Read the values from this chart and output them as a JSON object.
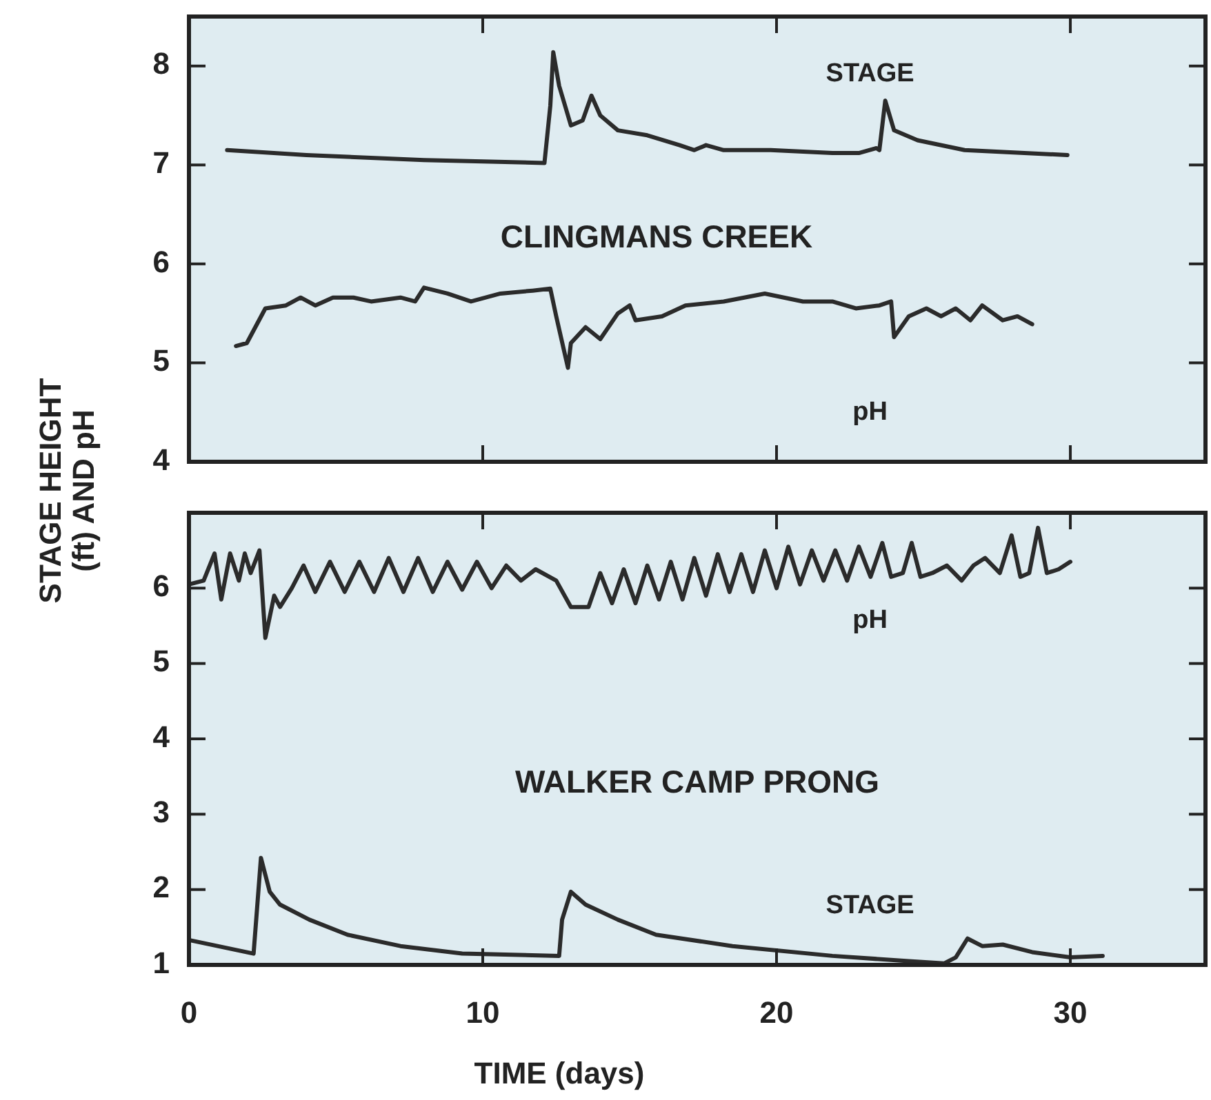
{
  "chart_data": [
    {
      "type": "line",
      "ylabel": "STAGE HEIGHT\n(ft) AND pH",
      "annotations": [
        "CLINGMANS CREEK"
      ],
      "xlim": [
        0,
        34.6
      ],
      "xticks": [
        0,
        10,
        20,
        30
      ],
      "ylim": [
        4,
        8.5
      ],
      "yticks": [
        4,
        5,
        6,
        7,
        8
      ],
      "tick_labels": "y",
      "grid": false,
      "legend": false,
      "marker": "none",
      "line_style": "solid",
      "series": [
        {
          "name": "STAGE",
          "color": "#2b2b2b",
          "x": [
            1.3,
            4,
            8,
            12.1,
            12.3,
            12.4,
            12.6,
            13.0,
            13.4,
            13.7,
            14.0,
            14.6,
            15.6,
            16.7,
            17.2,
            17.6,
            18.2,
            19.8,
            21.9,
            22.8,
            23.4,
            23.5,
            23.7,
            24.0,
            24.8,
            26.4,
            29.9
          ],
          "values": [
            7.15,
            7.1,
            7.05,
            7.02,
            7.6,
            8.14,
            7.8,
            7.4,
            7.45,
            7.7,
            7.5,
            7.35,
            7.3,
            7.2,
            7.15,
            7.2,
            7.15,
            7.15,
            7.12,
            7.12,
            7.17,
            7.15,
            7.65,
            7.35,
            7.25,
            7.15,
            7.1
          ]
        },
        {
          "name": "pH",
          "color": "#2b2b2b",
          "x": [
            1.6,
            1.97,
            2.6,
            3.3,
            3.8,
            4.3,
            4.9,
            5.6,
            6.2,
            7.2,
            7.7,
            8.0,
            8.8,
            9.6,
            10.6,
            11.7,
            12.3,
            12.5,
            12.9,
            13.0,
            13.5,
            14.0,
            14.6,
            15.0,
            15.2,
            16.1,
            16.9,
            18.2,
            19.6,
            20.9,
            21.9,
            22.7,
            23.5,
            23.9,
            24.0,
            24.5,
            25.1,
            25.6,
            26.1,
            26.6,
            27.0,
            27.7,
            28.2,
            28.7
          ],
          "values": [
            5.17,
            5.2,
            5.55,
            5.58,
            5.66,
            5.58,
            5.66,
            5.66,
            5.62,
            5.66,
            5.62,
            5.76,
            5.7,
            5.62,
            5.7,
            5.73,
            5.75,
            5.47,
            4.95,
            5.2,
            5.36,
            5.24,
            5.5,
            5.58,
            5.43,
            5.47,
            5.58,
            5.62,
            5.7,
            5.62,
            5.62,
            5.55,
            5.58,
            5.62,
            5.26,
            5.47,
            5.55,
            5.47,
            5.55,
            5.43,
            5.58,
            5.43,
            5.47,
            5.39
          ]
        }
      ]
    },
    {
      "type": "line",
      "xlabel": "TIME (days)",
      "annotations": [
        "WALKER CAMP PRONG"
      ],
      "xlim": [
        0,
        34.6
      ],
      "xticks": [
        0,
        10,
        20,
        30
      ],
      "ylim": [
        1,
        7
      ],
      "yticks": [
        1,
        2,
        3,
        4,
        5,
        6
      ],
      "grid": false,
      "legend": false,
      "marker": "none",
      "line_style": "solid",
      "series": [
        {
          "name": "pH",
          "color": "#2b2b2b",
          "x": [
            0,
            0.5,
            0.87,
            1.1,
            1.4,
            1.7,
            1.9,
            2.1,
            2.4,
            2.6,
            2.9,
            3.1,
            3.5,
            3.9,
            4.3,
            4.8,
            5.3,
            5.8,
            6.3,
            6.8,
            7.3,
            7.8,
            8.3,
            8.8,
            9.3,
            9.8,
            10.3,
            10.8,
            11.3,
            11.8,
            12.5,
            13.0,
            13.6,
            14.0,
            14.4,
            14.8,
            15.2,
            15.6,
            16.0,
            16.4,
            16.8,
            17.2,
            17.6,
            18.0,
            18.4,
            18.8,
            19.2,
            19.6,
            20.0,
            20.4,
            20.8,
            21.2,
            21.6,
            22.0,
            22.4,
            22.8,
            23.2,
            23.6,
            23.9,
            24.3,
            24.6,
            24.9,
            25.3,
            25.8,
            26.3,
            26.7,
            27.1,
            27.6,
            28.0,
            28.3,
            28.6,
            28.9,
            29.2,
            29.6,
            30.0
          ],
          "values": [
            6.05,
            6.1,
            6.46,
            5.85,
            6.46,
            6.1,
            6.46,
            6.2,
            6.5,
            5.34,
            5.9,
            5.75,
            6.0,
            6.3,
            5.95,
            6.35,
            5.95,
            6.35,
            5.95,
            6.4,
            5.95,
            6.4,
            5.95,
            6.35,
            5.98,
            6.35,
            6.0,
            6.3,
            6.1,
            6.25,
            6.1,
            5.75,
            5.75,
            6.2,
            5.8,
            6.25,
            5.8,
            6.3,
            5.85,
            6.35,
            5.85,
            6.4,
            5.9,
            6.45,
            5.95,
            6.45,
            5.95,
            6.5,
            6.0,
            6.55,
            6.05,
            6.5,
            6.1,
            6.5,
            6.1,
            6.55,
            6.15,
            6.6,
            6.15,
            6.2,
            6.6,
            6.15,
            6.2,
            6.3,
            6.1,
            6.3,
            6.4,
            6.2,
            6.7,
            6.15,
            6.2,
            6.8,
            6.2,
            6.25,
            6.35
          ]
        },
        {
          "name": "STAGE",
          "color": "#2b2b2b",
          "x": [
            0,
            2.2,
            2.45,
            2.75,
            3.1,
            4.1,
            5.4,
            7.2,
            9.3,
            12.6,
            12.7,
            13.0,
            13.5,
            14.6,
            15.9,
            18.5,
            21.9,
            24.5,
            25.7,
            26.1,
            26.5,
            27.0,
            27.7,
            28.7,
            30.0,
            31.1
          ],
          "values": [
            1.33,
            1.15,
            2.42,
            1.97,
            1.8,
            1.6,
            1.4,
            1.25,
            1.15,
            1.12,
            1.6,
            1.97,
            1.8,
            1.6,
            1.4,
            1.25,
            1.12,
            1.05,
            1.02,
            1.1,
            1.35,
            1.25,
            1.27,
            1.17,
            1.1,
            1.12
          ]
        }
      ]
    }
  ]
}
